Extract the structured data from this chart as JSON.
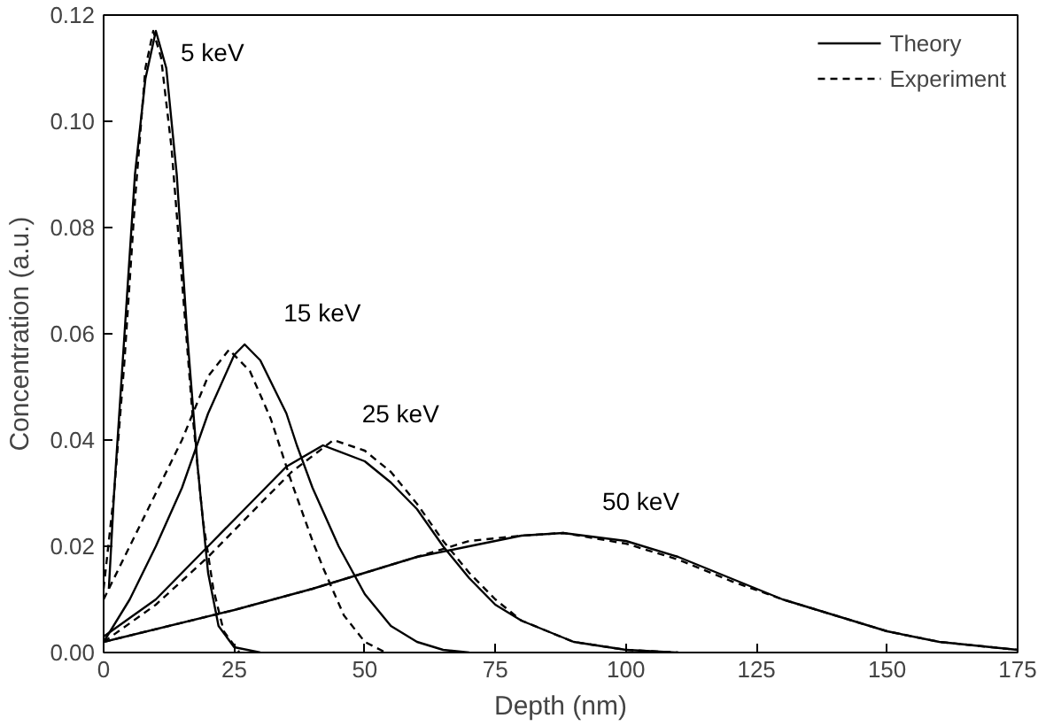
{
  "chart_data": {
    "type": "line",
    "xlabel": "Depth (nm)",
    "ylabel": "Concentration (a.u.)",
    "xlim": [
      0,
      175
    ],
    "ylim": [
      0,
      0.12
    ],
    "xticks": [
      0,
      25,
      50,
      75,
      100,
      125,
      150,
      175
    ],
    "yticks": [
      {
        "value": 0,
        "label": "0.00"
      },
      {
        "value": 0.02,
        "label": "0.02"
      },
      {
        "value": 0.04,
        "label": "0.04"
      },
      {
        "value": 0.06,
        "label": "0.06"
      },
      {
        "value": 0.08,
        "label": "0.08"
      },
      {
        "value": 0.1,
        "label": "0.10"
      },
      {
        "value": 0.12,
        "label": "0.12"
      }
    ],
    "legend": "top right",
    "grid": false,
    "series": [
      {
        "name": "Theory",
        "color": "#000000",
        "line_style": "solid",
        "x": [
          1,
          2,
          4,
          6,
          8,
          10,
          12,
          14,
          16,
          18,
          20,
          22,
          25,
          30
        ],
        "values": [
          0.012,
          0.03,
          0.06,
          0.09,
          0.108,
          0.117,
          0.11,
          0.09,
          0.06,
          0.035,
          0.015,
          0.005,
          0.001,
          0
        ]
      },
      {
        "name": "Experiment",
        "color": "#000000",
        "line_style": "dashed",
        "x": [
          0,
          2,
          4,
          6,
          8,
          9.5,
          11,
          13,
          15,
          17,
          19,
          21,
          23,
          26
        ],
        "values": [
          0.012,
          0.03,
          0.055,
          0.085,
          0.11,
          0.117,
          0.112,
          0.095,
          0.07,
          0.045,
          0.025,
          0.012,
          0.004,
          0
        ]
      },
      {
        "color": "#000000",
        "line_style": "solid",
        "x": [
          0,
          5,
          10,
          15,
          20,
          25,
          27,
          30,
          35,
          37,
          40,
          45,
          50,
          55,
          60,
          65,
          70
        ],
        "values": [
          0.002,
          0.01,
          0.02,
          0.031,
          0.045,
          0.056,
          0.058,
          0.055,
          0.045,
          0.039,
          0.031,
          0.02,
          0.011,
          0.005,
          0.002,
          0.0005,
          0
        ]
      },
      {
        "color": "#000000",
        "line_style": "dashed",
        "x": [
          0,
          5,
          10,
          15,
          20,
          24,
          28,
          32,
          36,
          40,
          42,
          46,
          50,
          54
        ],
        "values": [
          0.01,
          0.02,
          0.03,
          0.04,
          0.052,
          0.057,
          0.053,
          0.044,
          0.032,
          0.021,
          0.016,
          0.007,
          0.002,
          0
        ]
      },
      {
        "color": "#000000",
        "line_style": "solid",
        "x": [
          0,
          10,
          20,
          30,
          35,
          42,
          50,
          55,
          60,
          65,
          70,
          75,
          80,
          90,
          100,
          110
        ],
        "values": [
          0.003,
          0.01,
          0.02,
          0.03,
          0.035,
          0.039,
          0.036,
          0.032,
          0.027,
          0.02,
          0.014,
          0.009,
          0.006,
          0.002,
          0.0005,
          0
        ]
      },
      {
        "color": "#000000",
        "line_style": "dashed",
        "x": [
          0,
          10,
          20,
          30,
          36,
          44,
          50,
          55,
          60,
          65,
          70,
          75,
          80,
          90,
          100,
          110
        ],
        "values": [
          0.002,
          0.009,
          0.018,
          0.028,
          0.034,
          0.04,
          0.038,
          0.034,
          0.028,
          0.021,
          0.015,
          0.01,
          0.006,
          0.002,
          0.0005,
          0
        ]
      },
      {
        "color": "#000000",
        "line_style": "solid",
        "x": [
          0,
          25,
          40,
          50,
          60,
          70,
          80,
          88,
          100,
          110,
          120,
          130,
          140,
          150,
          160,
          170,
          175
        ],
        "values": [
          0.002,
          0.008,
          0.012,
          0.015,
          0.018,
          0.02,
          0.022,
          0.0225,
          0.021,
          0.018,
          0.014,
          0.01,
          0.007,
          0.004,
          0.002,
          0.001,
          0.0005
        ]
      },
      {
        "color": "#000000",
        "line_style": "dashed",
        "x": [
          0,
          25,
          40,
          50,
          60,
          70,
          80,
          88,
          100,
          110,
          120,
          130,
          140,
          150,
          160,
          170,
          175
        ],
        "values": [
          0.002,
          0.008,
          0.012,
          0.015,
          0.018,
          0.021,
          0.022,
          0.0225,
          0.0205,
          0.0175,
          0.0135,
          0.01,
          0.007,
          0.004,
          0.002,
          0.001,
          0.0005
        ]
      }
    ],
    "annotations": [
      "5 keV",
      "15 keV",
      "25 keV",
      "50 keV"
    ]
  }
}
